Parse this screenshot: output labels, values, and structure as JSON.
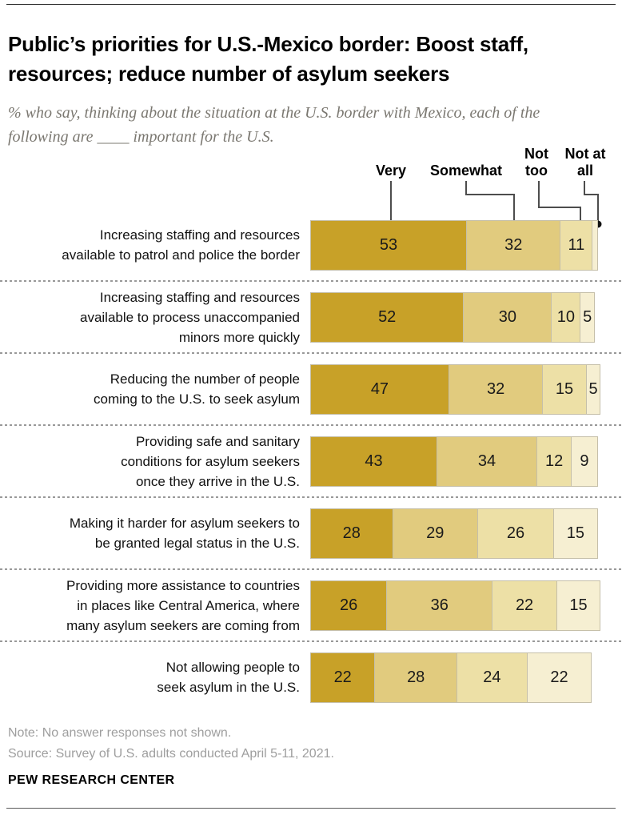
{
  "title": "Public’s priorities for U.S.-Mexico border: Boost staff, resources; reduce number of asylum seekers",
  "subtitle": "% who say, thinking about the situation at the U.S. border with Mexico, each of the following are ____ important for the U.S.",
  "chart_data": {
    "type": "bar",
    "orientation": "horizontal",
    "stacked": true,
    "unit": "%",
    "xlim": [
      0,
      100
    ],
    "legend_position": "top",
    "categories": [
      "Increasing staffing and resources available to patrol and police the border",
      "Increasing staffing and resources available to process unaccompanied minors more quickly",
      "Reducing the number of people coming to the U.S. to seek asylum",
      "Providing safe and sanitary conditions for asylum seekers once they arrive in the U.S.",
      "Making it harder for asylum seekers to be granted legal status in the U.S.",
      "Providing more assistance to countries in places like Central America, where many asylum seekers are coming from",
      "Not allowing people to seek asylum in the U.S."
    ],
    "categories_lines": [
      [
        "Increasing staffing and resources",
        "available to patrol and police the border"
      ],
      [
        "Increasing staffing and resources",
        "available to process unaccompanied",
        "minors more quickly"
      ],
      [
        "Reducing the number of people",
        "coming to the U.S. to seek asylum"
      ],
      [
        "Providing safe and sanitary",
        "conditions for asylum seekers",
        "once they arrive in the U.S."
      ],
      [
        "Making it harder for asylum seekers to",
        "be granted legal status in the U.S."
      ],
      [
        "Providing more assistance to countries",
        "in places like Central America, where",
        "many asylum seekers are coming from"
      ],
      [
        "Not allowing people to",
        "seek asylum in the U.S."
      ]
    ],
    "series": [
      {
        "name": "Very",
        "color": "#C8A128",
        "values": [
          53,
          52,
          47,
          43,
          28,
          26,
          22
        ],
        "labels": [
          "53",
          "52",
          "47",
          "43",
          "28",
          "26",
          "22"
        ]
      },
      {
        "name": "Somewhat",
        "color": "#E1CB7E",
        "values": [
          32,
          30,
          32,
          34,
          29,
          36,
          28
        ],
        "labels": [
          "32",
          "30",
          "32",
          "34",
          "29",
          "36",
          "28"
        ]
      },
      {
        "name": "Not too",
        "color": "#EDE0A6",
        "values": [
          11,
          10,
          15,
          12,
          26,
          22,
          24
        ],
        "labels": [
          "11",
          "10",
          "15",
          "12",
          "26",
          "22",
          "24"
        ]
      },
      {
        "name": "Not at all",
        "color": "#F6EFD2",
        "values": [
          2,
          5,
          5,
          9,
          15,
          15,
          22
        ],
        "labels": [
          "",
          "5",
          "5",
          "9",
          "15",
          "15",
          "22"
        ]
      }
    ]
  },
  "note": "Note: No answer responses not shown.",
  "source": "Source: Survey of U.S. adults conducted April 5-11, 2021.",
  "brand": "PEW RESEARCH CENTER"
}
